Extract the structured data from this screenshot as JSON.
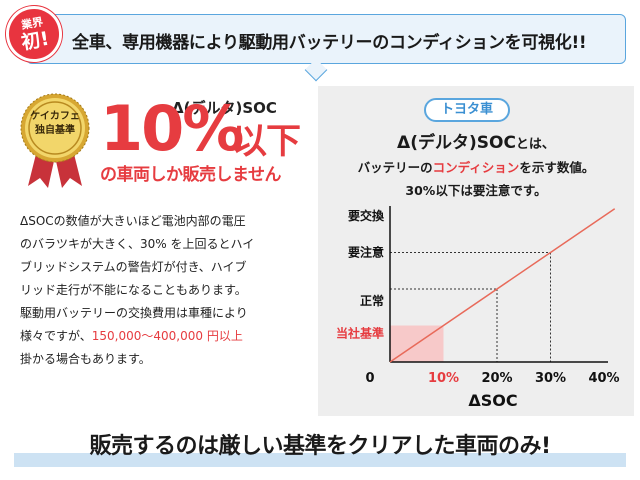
{
  "banner": {
    "badge_line1": "業界",
    "badge_line2": "初!",
    "text": "全車、専用機器により駆動用バッテリーのコンディションを可視化!!"
  },
  "medal": {
    "line1": "ケイカフェ",
    "line2": "独自基準"
  },
  "headline": {
    "delta_label": "Δ(デルタ)SOC",
    "big_value": "10%",
    "big_suffix": "以下",
    "sub": "の車両しか販売しません"
  },
  "body": {
    "line1": "ΔSOCの数値が大きいほど電池内部の電圧",
    "line2": "のバラツキが大きく、30% を上回るとハイ",
    "line3": "ブリッドシステムの警告灯が付き、ハイブ",
    "line4": "リッド走行が不能になることもあります。",
    "line5": "駆動用バッテリーの交換費用は車種により",
    "line6_prefix": "様々ですが、",
    "line6_red": "150,000〜400,000 円以上",
    "line7": "掛かる場合もあります。"
  },
  "panel": {
    "pill": "トヨタ車",
    "title_main": "Δ(デルタ)SOC",
    "title_small": "とは、",
    "desc_prefix": "バッテリーの",
    "desc_red": "コンディション",
    "desc_suffix": "を示す数値。",
    "note": "30%以下は要注意です。"
  },
  "chart_data": {
    "type": "line",
    "xlabel": "ΔSOC",
    "ylabel": "",
    "x_ticks": [
      "0",
      "10%",
      "20%",
      "30%",
      "40%"
    ],
    "x_values": [
      0,
      10,
      20,
      30,
      40
    ],
    "xlim": [
      0,
      40
    ],
    "y_categories": [
      {
        "label": "当社基準",
        "x": 10
      },
      {
        "label": "正常",
        "x": 20
      },
      {
        "label": "要注意",
        "x": 30
      },
      {
        "label": "要交換",
        "x": 40
      }
    ],
    "line": {
      "x": [
        0,
        42
      ],
      "y": [
        0,
        42
      ]
    },
    "highlight_range": [
      0,
      10
    ],
    "colors": {
      "line": "#e86a5a",
      "highlight": "#f7c9c9",
      "accent": "#e63c40"
    },
    "grid": false
  },
  "footer": {
    "text": "販売するのは厳しい基準をクリアした車両のみ!"
  },
  "colors": {
    "accent": "#e63c40",
    "blue": "#5aa6de",
    "panel_bg": "#eeeeee"
  }
}
